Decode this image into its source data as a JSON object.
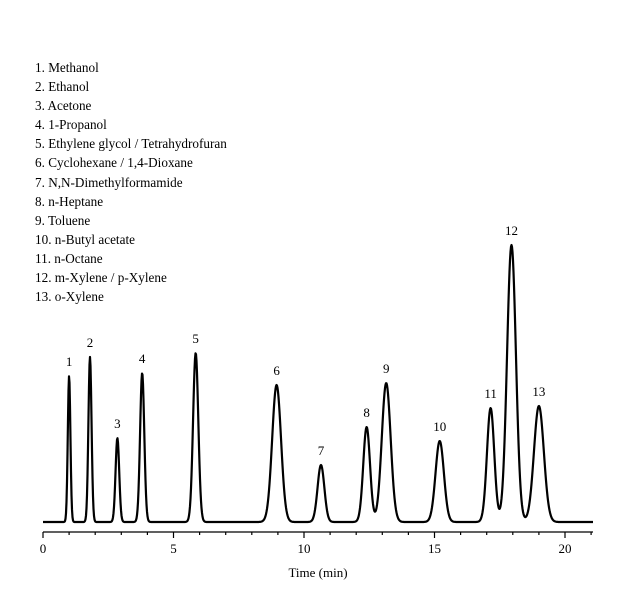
{
  "chart_data": {
    "type": "line",
    "title": "",
    "xlabel": "Time (min)",
    "ylabel": "",
    "xlim": [
      0,
      21
    ],
    "xticks": [
      0,
      5,
      10,
      15,
      20
    ],
    "grid": false,
    "legend_placement": "top-left",
    "line_color": "#000000",
    "compounds": [
      "1. Methanol",
      "2. Ethanol",
      "3. Acetone",
      "4. 1-Propanol",
      "5. Ethylene glycol / Tetrahydrofuran",
      "6. Cyclohexane / 1,4-Dioxane",
      "7. N,N-Dimethylformamide",
      "8. n-Heptane",
      "9. Toluene",
      "10. n-Butyl acetate",
      "11. n-Octane",
      "12. m-Xylene / p-Xylene",
      "13. o-Xylene"
    ],
    "peaks": [
      {
        "label": "1",
        "time": 1.0,
        "height": 146,
        "width": 0.05
      },
      {
        "label": "2",
        "time": 1.8,
        "height": 165,
        "width": 0.06
      },
      {
        "label": "3",
        "time": 2.85,
        "height": 84,
        "width": 0.07
      },
      {
        "label": "4",
        "time": 3.8,
        "height": 149,
        "width": 0.08
      },
      {
        "label": "5",
        "time": 5.85,
        "height": 169,
        "width": 0.1
      },
      {
        "label": "6",
        "time": 8.95,
        "height": 137,
        "width": 0.17
      },
      {
        "label": "7",
        "time": 10.65,
        "height": 57,
        "width": 0.13
      },
      {
        "label": "8",
        "time": 12.4,
        "height": 95,
        "width": 0.13
      },
      {
        "label": "9",
        "time": 13.15,
        "height": 139,
        "width": 0.17
      },
      {
        "label": "10",
        "time": 15.2,
        "height": 81,
        "width": 0.16
      },
      {
        "label": "11",
        "time": 17.15,
        "height": 114,
        "width": 0.14
      },
      {
        "label": "12",
        "time": 17.95,
        "height": 277,
        "width": 0.17
      },
      {
        "label": "13",
        "time": 19.0,
        "height": 116,
        "width": 0.19
      }
    ]
  }
}
